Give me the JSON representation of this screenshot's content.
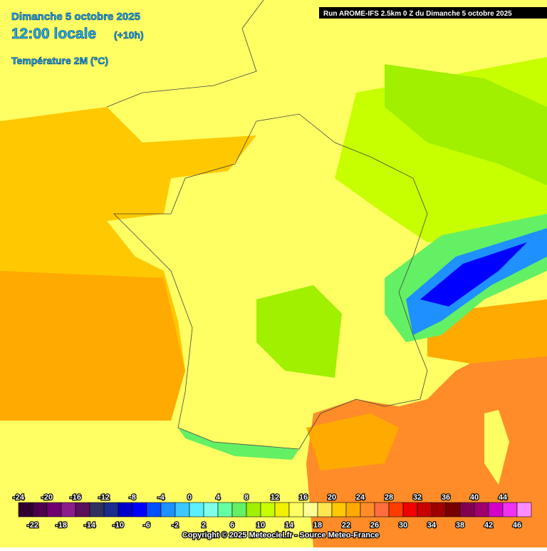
{
  "header": {
    "date": "Dimanche 5 octobre 2025",
    "time": "12:00 locale",
    "offset": "(+10h)",
    "parameter": "Température 2M (°C)",
    "run": "Run AROME-IFS 2.5km 0 Z du Dimanche 5 octobre 2025"
  },
  "legend": {
    "items": [
      {
        "value": -24,
        "color": "#300030"
      },
      {
        "value": -22,
        "color": "#4c004c"
      },
      {
        "value": -20,
        "color": "#700070"
      },
      {
        "value": -18,
        "color": "#8c1c8c"
      },
      {
        "value": -16,
        "color": "#5a105a"
      },
      {
        "value": -14,
        "color": "#303060"
      },
      {
        "value": -12,
        "color": "#1c2c8c"
      },
      {
        "value": -10,
        "color": "#0000c8"
      },
      {
        "value": -8,
        "color": "#0000ff"
      },
      {
        "value": -6,
        "color": "#0050ff"
      },
      {
        "value": -4,
        "color": "#1e90ff"
      },
      {
        "value": -2,
        "color": "#3cc8ff"
      },
      {
        "value": 0,
        "color": "#5af0ff"
      },
      {
        "value": 2,
        "color": "#80ffe8"
      },
      {
        "value": 4,
        "color": "#64ffa0"
      },
      {
        "value": 6,
        "color": "#64f064"
      },
      {
        "value": 8,
        "color": "#a0f000"
      },
      {
        "value": 10,
        "color": "#c8ff00"
      },
      {
        "value": 12,
        "color": "#f0f000"
      },
      {
        "value": 14,
        "color": "#ffff64"
      },
      {
        "value": 16,
        "color": "#ffff96"
      },
      {
        "value": 18,
        "color": "#ffe650"
      },
      {
        "value": 20,
        "color": "#ffc800"
      },
      {
        "value": 22,
        "color": "#ffaa00"
      },
      {
        "value": 24,
        "color": "#ff8c28"
      },
      {
        "value": 26,
        "color": "#ff6e3c"
      },
      {
        "value": 28,
        "color": "#ff3c00"
      },
      {
        "value": 30,
        "color": "#f00000"
      },
      {
        "value": 32,
        "color": "#c80000"
      },
      {
        "value": 34,
        "color": "#a00000"
      },
      {
        "value": 36,
        "color": "#780000"
      },
      {
        "value": 38,
        "color": "#820050"
      },
      {
        "value": 40,
        "color": "#a0006e"
      },
      {
        "value": 42,
        "color": "#d200c8"
      },
      {
        "value": 44,
        "color": "#f032f0"
      },
      {
        "value": 46,
        "color": "#ff8cff"
      }
    ]
  },
  "footer": {
    "copyright": "Copyright © 2025 Meteociel.fr - Source Meteo-France"
  }
}
